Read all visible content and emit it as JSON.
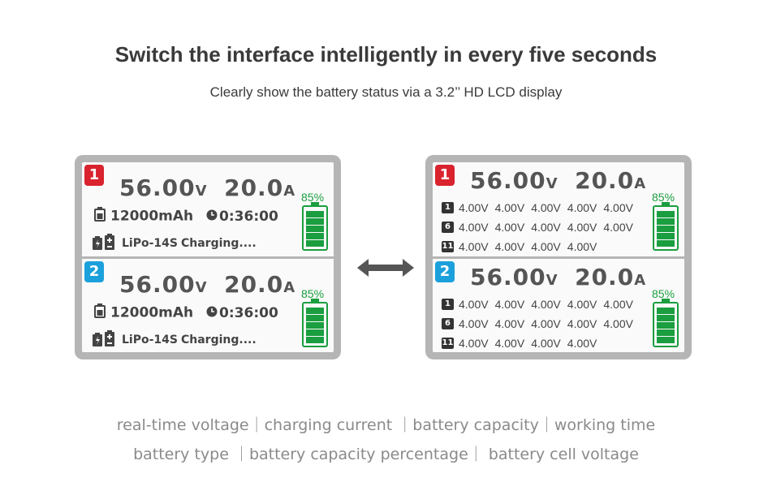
{
  "header": {
    "title": "Switch the interface intelligently in every five seconds",
    "subtitle": "Clearly show the battery status via a 3.2’’ HD LCD display"
  },
  "colors": {
    "accent_green": "#1a9e3f",
    "channel1": "#d9232e",
    "channel2": "#1ba0dc",
    "frame": "#b5b5b5"
  },
  "left_screen": {
    "channels": [
      {
        "number": "1",
        "voltage": "56.00",
        "voltage_unit": "V",
        "current": "20.0",
        "current_unit": "A",
        "percent": "85%",
        "capacity": "12000mAh",
        "time": "0:36:00",
        "battery_type": "LiPo-14S",
        "status": "Charging...."
      },
      {
        "number": "2",
        "voltage": "56.00",
        "voltage_unit": "V",
        "current": "20.0",
        "current_unit": "A",
        "percent": "85%",
        "capacity": "12000mAh",
        "time": "0:36:00",
        "battery_type": "LiPo-14S",
        "status": "Charging...."
      }
    ]
  },
  "right_screen": {
    "channels": [
      {
        "number": "1",
        "voltage": "56.00",
        "voltage_unit": "V",
        "current": "20.0",
        "current_unit": "A",
        "percent": "85%",
        "cell_rows": [
          {
            "index": "1",
            "values": [
              "4.00V",
              "4.00V",
              "4.00V",
              "4.00V",
              "4.00V"
            ]
          },
          {
            "index": "6",
            "values": [
              "4.00V",
              "4.00V",
              "4.00V",
              "4.00V",
              "4.00V"
            ]
          },
          {
            "index": "11",
            "values": [
              "4.00V",
              "4.00V",
              "4.00V",
              "4.00V"
            ]
          }
        ]
      },
      {
        "number": "2",
        "voltage": "56.00",
        "voltage_unit": "V",
        "current": "20.0",
        "current_unit": "A",
        "percent": "85%",
        "cell_rows": [
          {
            "index": "1",
            "values": [
              "4.00V",
              "4.00V",
              "4.00V",
              "4.00V",
              "4.00V"
            ]
          },
          {
            "index": "6",
            "values": [
              "4.00V",
              "4.00V",
              "4.00V",
              "4.00V",
              "4.00V"
            ]
          },
          {
            "index": "11",
            "values": [
              "4.00V",
              "4.00V",
              "4.00V",
              "4.00V"
            ]
          }
        ]
      }
    ]
  },
  "icons": {
    "swap": "double-arrow-icon",
    "battery_level": "battery-level-icon",
    "battery_small": "battery-icon",
    "clock": "clock-icon",
    "battery_pack": "battery-pack-icon"
  },
  "footer": {
    "line1": "real-time voltage｜charging current ｜battery capacity｜working time",
    "line2": "battery type ｜battery capacity percentage｜ battery cell voltage"
  }
}
